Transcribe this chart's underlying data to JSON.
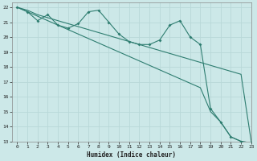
{
  "xlabel": "Humidex (Indice chaleur)",
  "xlim": [
    -0.5,
    23
  ],
  "ylim": [
    13,
    22.3
  ],
  "yticks": [
    13,
    14,
    15,
    16,
    17,
    18,
    19,
    20,
    21,
    22
  ],
  "xticks": [
    0,
    1,
    2,
    3,
    4,
    5,
    6,
    7,
    8,
    9,
    10,
    11,
    12,
    13,
    14,
    15,
    16,
    17,
    18,
    19,
    20,
    21,
    22,
    23
  ],
  "bg_color": "#cce8e8",
  "grid_color": "#b8d8d8",
  "line_color": "#2e7d70",
  "series": [
    {
      "x": [
        0,
        1,
        2,
        3,
        4,
        5,
        6,
        7,
        8,
        9,
        10,
        11,
        12,
        13,
        14,
        15,
        16,
        17,
        18,
        19,
        20,
        21,
        22,
        23
      ],
      "y": [
        22,
        21.7,
        21.1,
        21.5,
        20.8,
        20.6,
        20.9,
        21.7,
        21.8,
        21.0,
        20.2,
        19.7,
        19.5,
        19.5,
        19.8,
        20.8,
        21.1,
        20.0,
        19.5,
        15.2,
        14.3,
        13.3,
        13.0,
        12.9
      ],
      "marker": true
    },
    {
      "x": [
        0,
        1,
        2,
        3,
        4,
        5,
        6,
        7,
        8,
        9,
        10,
        11,
        12,
        13,
        14,
        15,
        16,
        17,
        18,
        19,
        20,
        21,
        22,
        23
      ],
      "y": [
        22,
        21.8,
        21.5,
        21.3,
        21.1,
        20.9,
        20.7,
        20.5,
        20.3,
        20.1,
        19.9,
        19.7,
        19.5,
        19.3,
        19.1,
        18.9,
        18.7,
        18.5,
        18.3,
        18.1,
        17.9,
        17.7,
        17.5,
        13.0
      ],
      "marker": false
    },
    {
      "x": [
        0,
        1,
        2,
        3,
        4,
        5,
        6,
        7,
        8,
        9,
        10,
        11,
        12,
        13,
        14,
        15,
        16,
        17,
        18,
        19,
        20,
        21,
        22,
        23
      ],
      "y": [
        22,
        21.7,
        21.4,
        21.1,
        20.8,
        20.5,
        20.2,
        19.9,
        19.6,
        19.3,
        19.0,
        18.7,
        18.4,
        18.1,
        17.8,
        17.5,
        17.2,
        16.9,
        16.6,
        15.0,
        14.3,
        13.3,
        13.0,
        12.9
      ],
      "marker": false
    }
  ]
}
